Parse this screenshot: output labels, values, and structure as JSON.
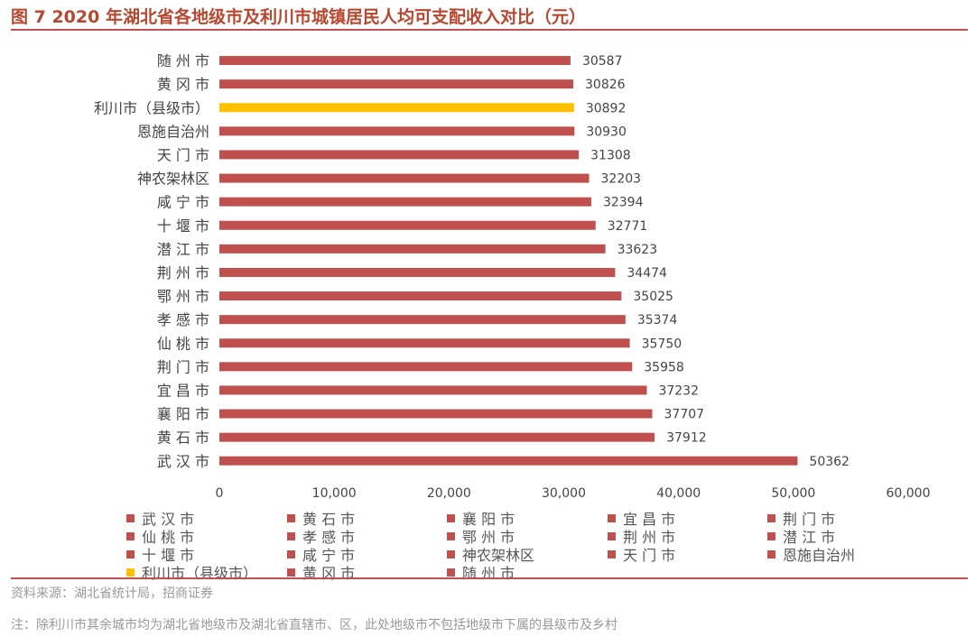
{
  "title": "图 7 2020 年湖北省各地级市及利川市城镇居民人均可支配收入对比（元）",
  "source": "资料来源：湖北省统计局，招商证券",
  "note": "注：除利川市其余城市均为湖北省地级市及湖北省直辖市、区，此处地级市不包括地级市下属的县级市及乡村",
  "colors": {
    "default_bar": "#c0504d",
    "highlight_bar": "#ffc000",
    "accent": "#c0504d"
  },
  "chart_data": {
    "type": "bar",
    "orientation": "horizontal",
    "title": "图 7 2020 年湖北省各地级市及利川市城镇居民人均可支配收入对比（元）",
    "xlabel": "",
    "ylabel": "",
    "xlim": [
      0,
      60000
    ],
    "xticks": [
      0,
      10000,
      20000,
      30000,
      40000,
      50000,
      60000
    ],
    "xtick_labels": [
      "0",
      "10,000",
      "20,000",
      "30,000",
      "40,000",
      "50,000",
      "60,000"
    ],
    "grid": false,
    "legend_position": "bottom",
    "highlight": "利川市（县级市）",
    "categories": [
      "随州市",
      "黄冈市",
      "利川市（县级市）",
      "恩施自治州",
      "天门市",
      "神农架林区",
      "咸宁市",
      "十堰市",
      "潜江市",
      "荆州市",
      "鄂州市",
      "孝感市",
      "仙桃市",
      "荆门市",
      "宜昌市",
      "襄阳市",
      "黄石市",
      "武汉市"
    ],
    "category_display": [
      "随 州 市",
      "黄 冈 市",
      "利川市（县级市）",
      "恩施自治州",
      "天 门 市",
      "神农架林区",
      "咸 宁 市",
      "十 堰 市",
      "潜 江 市",
      "荆 州 市",
      "鄂 州 市",
      "孝 感 市",
      "仙 桃 市",
      "荆 门 市",
      "宜 昌 市",
      "襄 阳 市",
      "黄 石 市",
      "武 汉 市"
    ],
    "values": [
      30587,
      30826,
      30892,
      30930,
      31308,
      32203,
      32394,
      32771,
      33623,
      34474,
      35025,
      35374,
      35750,
      35958,
      37232,
      37707,
      37912,
      50362
    ],
    "legend": [
      [
        "武 汉 市",
        "黄 石 市",
        "襄 阳 市",
        "宜 昌 市",
        "荆 门 市"
      ],
      [
        "仙 桃 市",
        "孝 感 市",
        "鄂 州 市",
        "荆 州 市",
        "潜 江 市"
      ],
      [
        "十 堰 市",
        "咸 宁 市",
        "神农架林区",
        "天 门 市",
        "恩施自治州"
      ],
      [
        "利川市（县级市）",
        "黄 冈 市",
        "随 州 市"
      ]
    ]
  }
}
